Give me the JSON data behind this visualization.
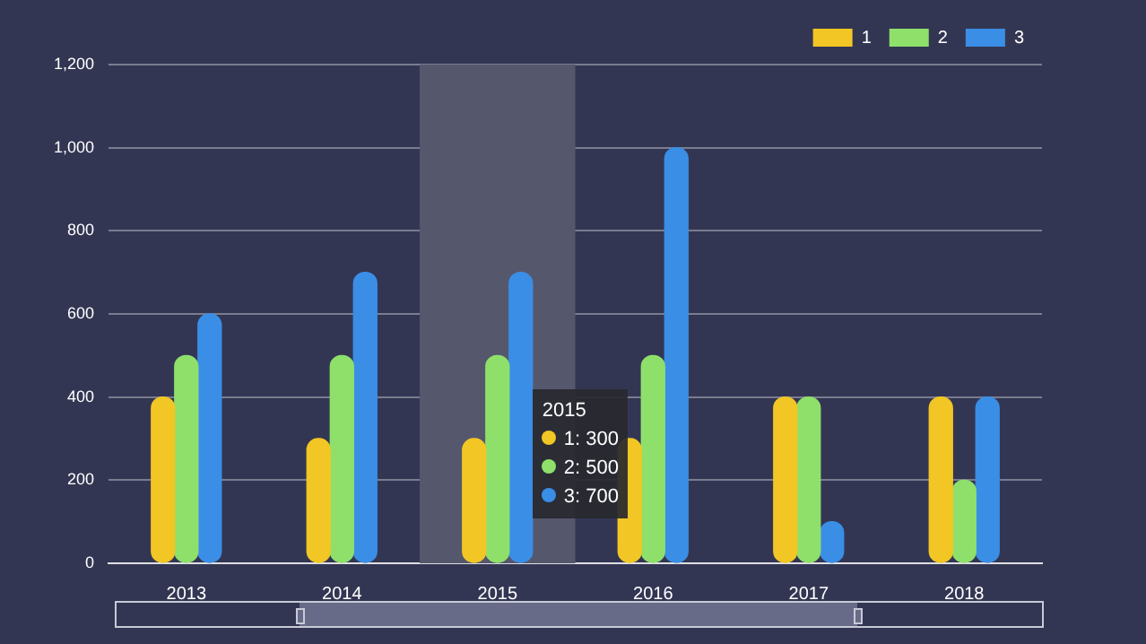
{
  "chart_data": {
    "type": "bar",
    "categories": [
      "2013",
      "2014",
      "2015",
      "2016",
      "2017",
      "2018"
    ],
    "series": [
      {
        "name": "1",
        "color": "#f2c624",
        "values": [
          400,
          300,
          300,
          300,
          400,
          400
        ]
      },
      {
        "name": "2",
        "color": "#8ee06b",
        "values": [
          500,
          500,
          500,
          500,
          400,
          200
        ]
      },
      {
        "name": "3",
        "color": "#3a8ee6",
        "values": [
          600,
          700,
          700,
          1000,
          100,
          400
        ]
      }
    ],
    "ylim": [
      0,
      1200
    ],
    "yticks": [
      0,
      200,
      400,
      600,
      800,
      {
        "value": 1000,
        "label": "1,000"
      },
      {
        "value": 1200,
        "label": "1,200"
      }
    ],
    "grid": "y",
    "legend": "top right",
    "bands": [
      {
        "axis": "x",
        "from": "2015",
        "to": "2015",
        "color": "#55576d"
      }
    ],
    "annotations": [
      "2015\n1: 300\n2: 500\n3: 700"
    ]
  }
}
